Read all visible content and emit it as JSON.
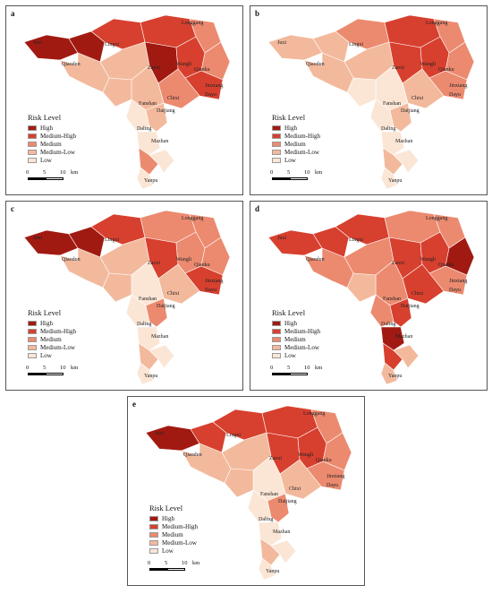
{
  "legend": {
    "title": "Risk Level",
    "levels": [
      {
        "label": "High",
        "color": "#a11a12"
      },
      {
        "label": "Medium-High",
        "color": "#d7402e"
      },
      {
        "label": "Medium",
        "color": "#ec8a6f"
      },
      {
        "label": "Medium-Low",
        "color": "#f3b99c"
      },
      {
        "label": "Low",
        "color": "#fbe6d6"
      }
    ]
  },
  "scale": {
    "t0": "0",
    "t1": "5",
    "t2": "10",
    "unit": "km"
  },
  "places": [
    "Juxi",
    "Qiaodun",
    "Lingxi",
    "Longgang",
    "Zaoxi",
    "Wangli",
    "Qianku",
    "Jinxiang",
    "Dayu",
    "Chixi",
    "Fanshan",
    "Daijiang",
    "Daling",
    "Mazhan",
    "Yanpu"
  ],
  "panels": [
    {
      "label": "a",
      "shades": [
        0,
        0,
        1,
        1,
        2,
        3,
        0,
        1,
        2,
        1,
        2,
        3,
        3,
        4,
        3,
        4,
        2,
        4,
        4,
        3
      ]
    },
    {
      "label": "b",
      "shades": [
        3,
        3,
        2,
        1,
        2,
        3,
        1,
        1,
        2,
        2,
        3,
        4,
        4,
        4,
        3,
        4,
        3,
        4,
        4,
        3
      ]
    },
    {
      "label": "c",
      "shades": [
        0,
        0,
        1,
        2,
        2,
        3,
        1,
        2,
        2,
        1,
        3,
        4,
        3,
        4,
        2,
        4,
        3,
        4,
        4,
        3
      ]
    },
    {
      "label": "d",
      "shades": [
        1,
        1,
        1,
        2,
        2,
        2,
        1,
        1,
        0,
        2,
        1,
        2,
        3,
        2,
        1,
        0,
        1,
        3,
        3,
        2
      ]
    },
    {
      "label": "e",
      "shades": [
        0,
        1,
        1,
        1,
        2,
        3,
        1,
        1,
        2,
        2,
        3,
        4,
        3,
        4,
        2,
        4,
        3,
        4,
        4,
        3
      ]
    }
  ]
}
